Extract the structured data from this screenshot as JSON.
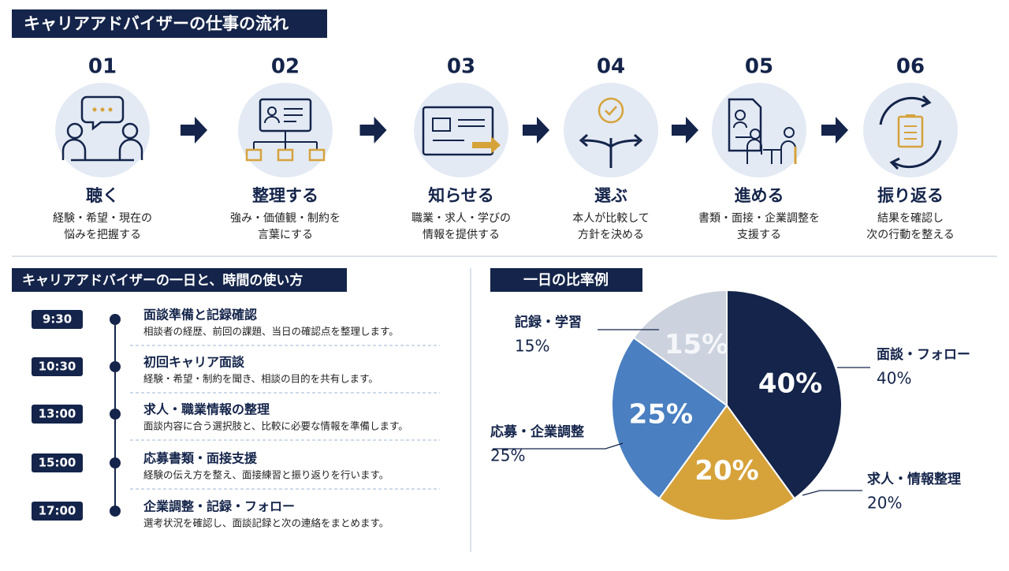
{
  "title": "キャリアアドバイザーの仕事の流れ",
  "steps": [
    {
      "number": "01",
      "title": "聴く",
      "lines": [
        "経験・希望・現在の",
        "悩みを把握する"
      ]
    },
    {
      "number": "02",
      "title": "整理する",
      "lines": [
        "強み・価値観・制約を",
        "言葉にする"
      ]
    },
    {
      "number": "03",
      "title": "知らせる",
      "lines": [
        "職業・求人・学びの",
        "情報を提供する"
      ]
    },
    {
      "number": "04",
      "title": "選ぶ",
      "lines": [
        "本人が比較して",
        "方針を決める"
      ]
    },
    {
      "number": "05",
      "title": "進める",
      "lines": [
        "書類・面接・企業調整を",
        "支援する"
      ]
    },
    {
      "number": "06",
      "title": "振り返る",
      "lines": [
        "結果を確認し",
        "次の行動を整える"
      ]
    }
  ],
  "timeline_title": "キャリアアドバイザーの一日と、時間の使い方",
  "timeline": [
    {
      "time": "9:30",
      "title": "面談準備と記録確認",
      "desc": "相談者の経歴、前回の課題、当日の確認点を整理します。"
    },
    {
      "time": "10:30",
      "title": "初回キャリア面談",
      "desc": "経験・希望・制約を聞き、相談の目的を共有します。"
    },
    {
      "time": "13:00",
      "title": "求人・職業情報の整理",
      "desc": "面談内容に合う選択肢と、比較に必要な情報を準備します。"
    },
    {
      "time": "15:00",
      "title": "応募書類・面接支援",
      "desc": "経験の伝え方を整え、面接練習と振り返りを行います。"
    },
    {
      "time": "17:00",
      "title": "企業調整・記録・フォロー",
      "desc": "選考状況を確認し、面談記録と次の連絡をまとめます。"
    }
  ],
  "chart_data": {
    "type": "pie",
    "title": "一日の比率例",
    "categories": [
      "面談・フォロー",
      "求人・情報整理",
      "応募・企業調整",
      "記録・学習"
    ],
    "values": [
      40,
      20,
      25,
      15
    ],
    "value_labels": [
      "40%",
      "20%",
      "25%",
      "15%"
    ],
    "colors": [
      "#14244a",
      "#d6a23a",
      "#4a7fc1",
      "#ccd3de"
    ]
  }
}
